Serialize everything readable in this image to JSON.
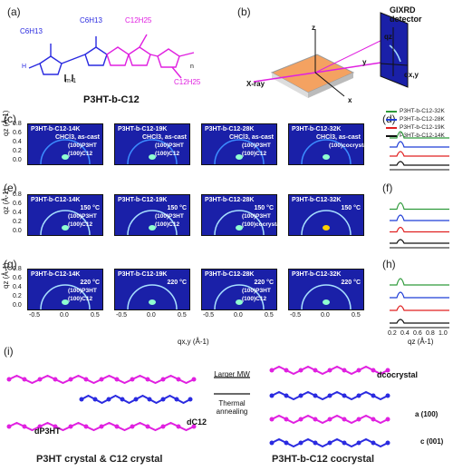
{
  "panel_letters": [
    "(a)",
    "(b)",
    "(c)",
    "(d)",
    "(e)",
    "(f)",
    "(g)",
    "(h)",
    "(i)"
  ],
  "molecule": {
    "title": "P3HT-b-C12",
    "label_c6a": "C6H13",
    "label_c6b": "C6H13",
    "label_c12a": "C12H25",
    "label_c12b": "C12H25",
    "label_m1": "m-1",
    "label_n": "n",
    "label_h": "H"
  },
  "setup": {
    "detector": "GIXRD detector",
    "xray": "X-ray",
    "qz": "qz",
    "qxy": "qx,y",
    "z": "z",
    "x": "x",
    "y": "y"
  },
  "legend": [
    {
      "label": "P3HT-b-C12-32K",
      "color": "#2e9a3a"
    },
    {
      "label": "P3HT-b-C12-28K",
      "color": "#1f3dd6"
    },
    {
      "label": "P3HT-b-C12-19K",
      "color": "#e02020"
    },
    {
      "label": "P3HT-b-C12-14K",
      "color": "#111111"
    }
  ],
  "rows": [
    {
      "condition": "CHCl3, as-cast",
      "samples": [
        "P3HT-b-C12-14K",
        "P3HT-b-C12-19K",
        "P3HT-b-C12-28K",
        "P3HT-b-C12-32K"
      ],
      "annotations": [
        [
          "(100)P3HT",
          "(100)C12"
        ],
        [
          "(100)P3HT",
          "(100)C12"
        ],
        [
          "(100)P3HT",
          "(100)C12"
        ],
        [
          "(100)cocrystal"
        ]
      ]
    },
    {
      "condition": "150 °C",
      "samples": [
        "P3HT-b-C12-14K",
        "P3HT-b-C12-19K",
        "P3HT-b-C12-28K",
        "P3HT-b-C12-32K"
      ],
      "annotations": [
        [
          "(100)P3HT",
          "(100)C12"
        ],
        [
          "(100)P3HT",
          "(100)C12"
        ],
        [
          "(100)P3HT",
          "(100)cocrystal"
        ],
        []
      ]
    },
    {
      "condition": "220 °C",
      "samples": [
        "P3HT-b-C12-14K",
        "P3HT-b-C12-19K",
        "P3HT-b-C12-28K",
        "P3HT-b-C12-32K"
      ],
      "annotations": [
        [
          "(100)P3HT",
          "(100)C12"
        ],
        [],
        [
          "(100)P3HT",
          "(100)C12"
        ],
        []
      ]
    }
  ],
  "axes": {
    "qz_label": "qz (Å-1)",
    "qxy_label": "qx,y (Å-1)",
    "qz_right_label": "qz (Å-1)",
    "y_ticks": [
      "0.8",
      "0.6",
      "0.4",
      "0.2",
      "0.0"
    ],
    "x_ticks": [
      "-0.5",
      "0.0",
      "0.5"
    ],
    "line_ticks": [
      "0.2",
      "0.4",
      "0.6",
      "0.8",
      "1.0"
    ]
  },
  "panel_i": {
    "larger_mw": "Larger MW",
    "thermal": "Thermal annealing",
    "d_p3ht": "dP3HT",
    "d_c12": "dC12",
    "d_cocrystal": "dcocrystal",
    "axis_a": "a (100)",
    "axis_c": "c (001)",
    "left_caption": "P3HT crystal & C12 crystal",
    "right_caption": "P3HT-b-C12 cocrystal"
  }
}
